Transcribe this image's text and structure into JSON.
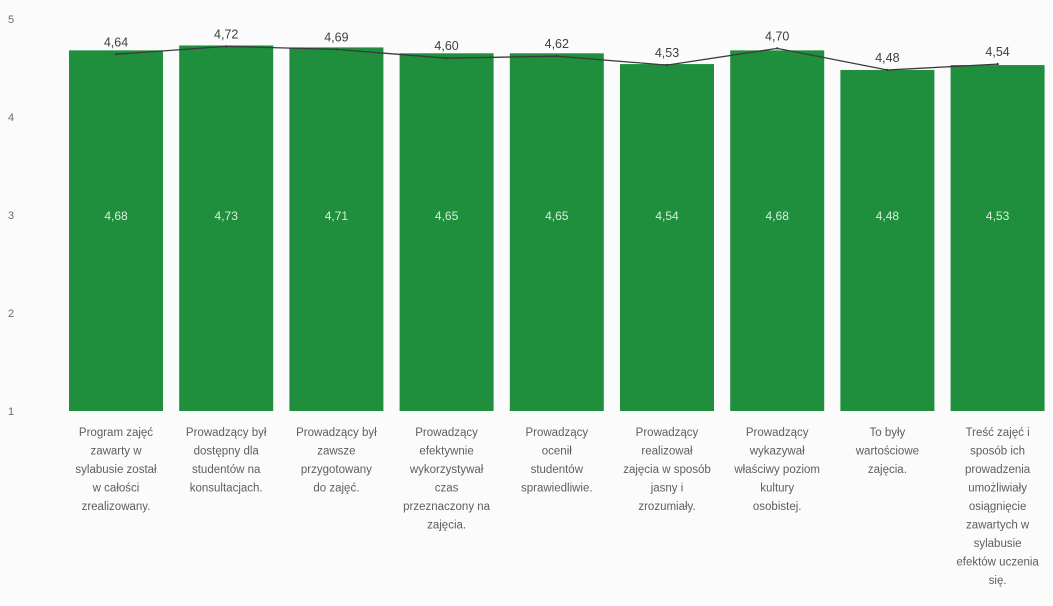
{
  "chart_data": {
    "type": "bar",
    "title": "",
    "xlabel": "",
    "ylabel": "",
    "ylim": [
      1,
      5
    ],
    "yticks": [
      1,
      2,
      3,
      4,
      5
    ],
    "grid": false,
    "colors": {
      "bar": "#1f8f3e",
      "line": "#3b3b3b",
      "bar_label": "#d8efd9"
    },
    "categories": [
      "Program zajęć zawarty w sylabusie został w całości zrealizowany.",
      "Prowadzący był dostępny dla studentów na konsultacjach.",
      "Prowadzący był zawsze przygotowany do zajęć.",
      "Prowadzący efektywnie wykorzystywał czas przeznaczony na zajęcia.",
      "Prowadzący ocenił studentów sprawiedliwie.",
      "Prowadzący realizował zajęcia w sposób jasny i zrozumiały.",
      "Prowadzący wykazywał właściwy poziom kultury osobistej.",
      "To były wartościowe zajęcia.",
      "Treść zajęć i sposób ich prowadzenia umożliwiały osiągnięcie zawartych w sylabusie efektów uczenia się."
    ],
    "category_lines": [
      [
        "Program zajęć",
        "zawarty w",
        "sylabusie został",
        "w całości",
        "zrealizowany."
      ],
      [
        "Prowadzący był",
        "dostępny dla",
        "studentów na",
        "konsultacjach."
      ],
      [
        "Prowadzący był",
        "zawsze",
        "przygotowany",
        "do zajęć."
      ],
      [
        "Prowadzący",
        "efektywnie",
        "wykorzystywał",
        "czas",
        "przeznaczony na",
        "zajęcia."
      ],
      [
        "Prowadzący",
        "ocenił",
        "studentów",
        "sprawiedliwie."
      ],
      [
        "Prowadzący",
        "realizował",
        "zajęcia w sposób",
        "jasny i",
        "zrozumiały."
      ],
      [
        "Prowadzący",
        "wykazywał",
        "właściwy poziom",
        "kultury",
        "osobistej."
      ],
      [
        "To były",
        "wartościowe",
        "zajęcia."
      ],
      [
        "Treść zajęć i",
        "sposób ich",
        "prowadzenia",
        "umożliwiały",
        "osiągnięcie",
        "zawartych w",
        "sylabusie",
        "efektów uczenia",
        "się."
      ]
    ],
    "series": [
      {
        "type": "bar",
        "values": [
          4.68,
          4.73,
          4.71,
          4.65,
          4.65,
          4.54,
          4.68,
          4.48,
          4.53
        ],
        "labels": [
          "4,68",
          "4,73",
          "4,71",
          "4,65",
          "4,65",
          "4,54",
          "4,68",
          "4,48",
          "4,53"
        ]
      },
      {
        "type": "line",
        "values": [
          4.64,
          4.72,
          4.69,
          4.6,
          4.62,
          4.53,
          4.7,
          4.48,
          4.54
        ],
        "labels": [
          "4,64",
          "4,72",
          "4,69",
          "4,60",
          "4,62",
          "4,53",
          "4,70",
          "4,48",
          "4,54"
        ]
      }
    ]
  }
}
